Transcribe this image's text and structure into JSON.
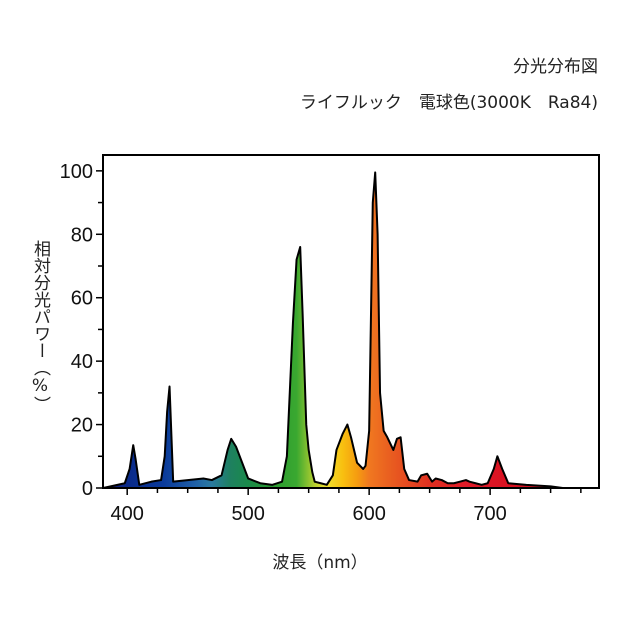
{
  "chart_data": {
    "type": "area",
    "title": "分光分布図",
    "subtitle": "ライフルック　電球色(3000K　Ra84)",
    "xlabel": "波長（nm）",
    "ylabel": "相対分光パワー（%）",
    "xlim": [
      380,
      790
    ],
    "ylim": [
      0,
      105
    ],
    "xticks": [
      400,
      500,
      600,
      700
    ],
    "yticks": [
      0,
      20,
      40,
      60,
      80,
      100
    ],
    "grid": false,
    "series": [
      {
        "x": [
          380,
          398,
          402,
          405,
          407,
          410,
          420,
          428,
          431,
          433,
          435,
          438,
          450,
          463,
          470,
          478,
          483,
          486,
          490,
          495,
          500,
          510,
          520,
          528,
          532,
          537,
          540,
          543,
          545,
          548,
          550,
          553,
          555,
          560,
          565,
          570,
          573,
          578,
          582,
          585,
          590,
          595,
          597,
          600,
          603,
          605,
          607,
          609,
          612,
          615,
          620,
          623,
          626,
          629,
          633,
          640,
          643,
          648,
          652,
          655,
          660,
          665,
          670,
          675,
          680,
          683,
          688,
          693,
          698,
          703,
          706,
          710,
          715,
          730,
          750,
          760,
          780
        ],
        "y": [
          0,
          1.5,
          6,
          13.5,
          9,
          1,
          2,
          2.5,
          10,
          24,
          32,
          2,
          2.5,
          3,
          2.5,
          4,
          12,
          15.5,
          13,
          8,
          3,
          1.5,
          1,
          2,
          10,
          52,
          72,
          76,
          55,
          20,
          12,
          5,
          2,
          1.5,
          1,
          4,
          12,
          17,
          20,
          16,
          8,
          6,
          7,
          18,
          90,
          99.5,
          80,
          30,
          18,
          16,
          12,
          15.5,
          16,
          6,
          2.5,
          2,
          4,
          4.5,
          2,
          3,
          2.5,
          1.5,
          1.5,
          2,
          2.5,
          2,
          1.5,
          1,
          1.5,
          6,
          10,
          6,
          1.5,
          1,
          0.5,
          0,
          0
        ]
      }
    ]
  }
}
